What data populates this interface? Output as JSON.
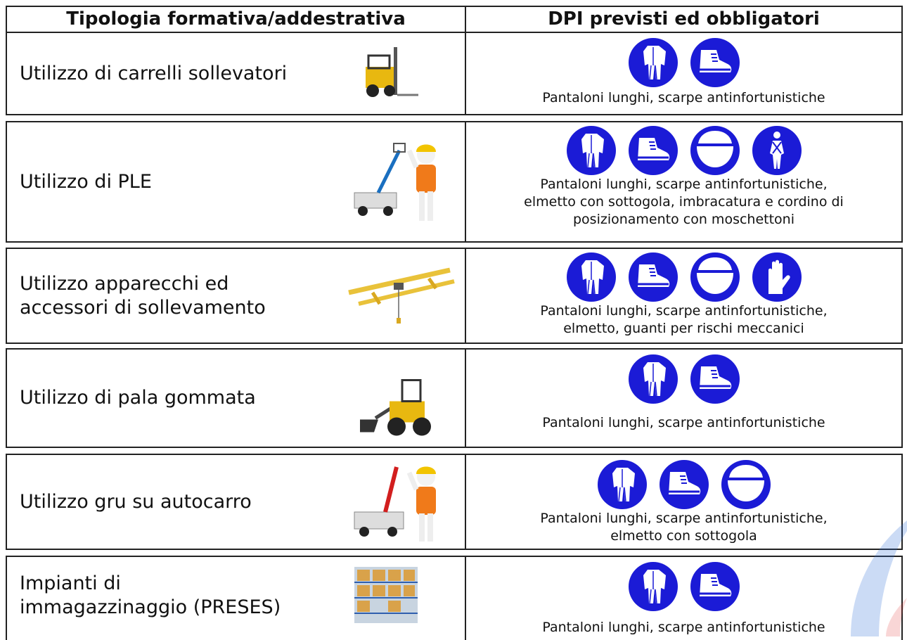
{
  "table": {
    "headers": [
      "Tipologia formativa/addestrativa",
      "DPI previsti ed obbligatori"
    ],
    "rows": [
      {
        "activity": [
          "Utilizzo di carrelli sollevatori"
        ],
        "ppe": [
          "Pantaloni lunghi, scarpe antinfortunistiche"
        ]
      },
      {
        "activity": [
          "Utilizzo di PLE"
        ],
        "ppe": [
          "Pantaloni lunghi, scarpe antinfortunistiche,",
          "elmetto con sottogola, imbracatura e cordino di",
          "posizionamento con moschettoni"
        ]
      },
      {
        "activity": [
          "Utilizzo apparecchi ed",
          "accessori di sollevamento"
        ],
        "ppe": [
          "Pantaloni lunghi, scarpe antinfortunistiche,",
          "elmetto, guanti per rischi meccanici"
        ]
      },
      {
        "activity": [
          "Utilizzo di pala gommata"
        ],
        "ppe": [
          "Pantaloni lunghi, scarpe antinfortunistiche"
        ]
      },
      {
        "activity": [
          "Utilizzo gru su autocarro"
        ],
        "ppe": [
          "Pantaloni lunghi, scarpe antinfortunistiche,",
          "elmetto con sottogola"
        ]
      },
      {
        "activity": [
          "Impianti di",
          "immagazzinaggio (PRESES)"
        ],
        "ppe": [
          "Pantaloni lunghi, scarpe antinfortunistiche"
        ]
      }
    ]
  }
}
